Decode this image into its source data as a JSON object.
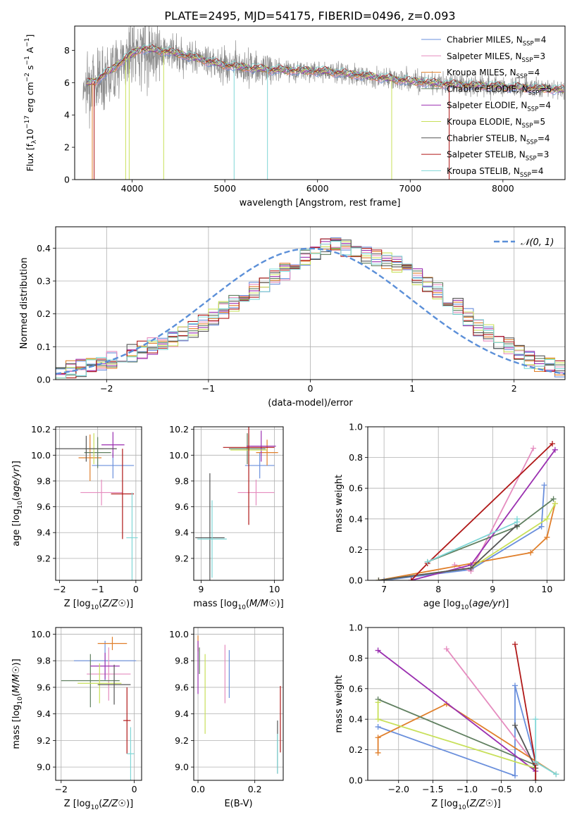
{
  "figure": {
    "title": "PLATE=2495, MJD=54175, FIBERID=0496, z=0.093"
  },
  "colors": {
    "Chabrier MILES": "#6a8fdc",
    "Salpeter MILES": "#e58cbf",
    "Kroupa MILES": "#e07f2b",
    "Chabrier ELODIE": "#5f7f5f",
    "Salpeter ELODIE": "#9a2fb0",
    "Kroupa ELODIE": "#c8e05a",
    "Chabrier STELIB": "#555555",
    "Salpeter STELIB": "#b01818",
    "Kroupa STELIB": "#7fd6d6",
    "data_spectrum": "#8c8c8c",
    "normal": "#5b8fd8"
  },
  "chart_data": [
    {
      "id": "spectrum",
      "type": "line",
      "xlabel": "wavelength [Angstrom, rest frame]",
      "ylabel": "Flux [f_λ10^-17 erg cm^-2 s^-1 A^-1]",
      "xlim": [
        3380,
        8670
      ],
      "ylim": [
        0,
        9.5
      ],
      "xticks": [
        4000,
        5000,
        6000,
        7000,
        8000
      ],
      "yticks": [
        0,
        2,
        4,
        6,
        8
      ],
      "grid": false,
      "legend_position": "top-right",
      "legend": [
        {
          "label": "Chabrier MILES, N",
          "sub": "SSP",
          "suffix": "=4",
          "series": "Chabrier MILES"
        },
        {
          "label": "Salpeter MILES, N",
          "sub": "SSP",
          "suffix": "=3",
          "series": "Salpeter MILES"
        },
        {
          "label": "Kroupa MILES, N",
          "sub": "SSP",
          "suffix": "=4",
          "series": "Kroupa MILES"
        },
        {
          "label": "Chabrier ELODIE, N",
          "sub": "SSP",
          "suffix": "=5",
          "series": "Chabrier ELODIE"
        },
        {
          "label": "Salpeter ELODIE, N",
          "sub": "SSP",
          "suffix": "=4",
          "series": "Salpeter ELODIE"
        },
        {
          "label": "Kroupa ELODIE, N",
          "sub": "SSP",
          "suffix": "=5",
          "series": "Kroupa ELODIE"
        },
        {
          "label": "Chabrier STELIB, N",
          "sub": "SSP",
          "suffix": "=4",
          "series": "Chabrier STELIB"
        },
        {
          "label": "Salpeter STELIB, N",
          "sub": "SSP",
          "suffix": "=3",
          "series": "Salpeter STELIB"
        },
        {
          "label": "Kroupa STELIB, N",
          "sub": "SSP",
          "suffix": "=4",
          "series": "Kroupa STELIB"
        }
      ],
      "continuum": {
        "x": [
          3480,
          3600,
          3800,
          3950,
          4100,
          4300,
          4500,
          4700,
          4900,
          5100,
          5300,
          5500,
          5800,
          6100,
          6400,
          6700,
          7000,
          7400,
          7800,
          8200,
          8650
        ],
        "y": [
          5.9,
          6.1,
          6.9,
          7.6,
          8.1,
          8.0,
          7.8,
          7.5,
          7.2,
          7.0,
          6.9,
          6.8,
          6.75,
          6.7,
          6.5,
          6.3,
          6.1,
          5.9,
          5.8,
          5.7,
          5.55
        ]
      },
      "spectrum_range": [
        3470,
        8660
      ],
      "model_drops": [
        {
          "x": 3570,
          "series": "Kroupa MILES"
        },
        {
          "x": 3590,
          "series": "Salpeter STELIB"
        },
        {
          "x": 3930,
          "series": "Kroupa ELODIE"
        },
        {
          "x": 3968,
          "series": "Kroupa ELODIE"
        },
        {
          "x": 4340,
          "series": "Kroupa ELODIE"
        },
        {
          "x": 5100,
          "series": "Kroupa STELIB"
        },
        {
          "x": 5460,
          "series": "Kroupa STELIB"
        },
        {
          "x": 6800,
          "series": "Kroupa ELODIE"
        },
        {
          "x": 7420,
          "series": "Salpeter STELIB"
        }
      ]
    },
    {
      "id": "residuals",
      "type": "bar",
      "xlabel": "(data-model)/error",
      "ylabel": "Normed distribution",
      "xlim": [
        -2.5,
        2.5
      ],
      "ylim": [
        0,
        0.465
      ],
      "xticks": [
        -2,
        -1,
        0,
        1,
        2
      ],
      "yticks": [
        0.0,
        0.1,
        0.2,
        0.3,
        0.4
      ],
      "grid": true,
      "legend_position": "top-right",
      "normal_label": "𝒩(0, 1)",
      "bin_edges_start": -2.5,
      "bin_width": 0.1,
      "n_bins": 50,
      "base_values": [
        0.02,
        0.03,
        0.035,
        0.045,
        0.05,
        0.06,
        0.07,
        0.08,
        0.09,
        0.1,
        0.11,
        0.12,
        0.14,
        0.155,
        0.17,
        0.19,
        0.21,
        0.23,
        0.25,
        0.27,
        0.29,
        0.31,
        0.33,
        0.35,
        0.37,
        0.39,
        0.405,
        0.41,
        0.4,
        0.39,
        0.38,
        0.37,
        0.36,
        0.35,
        0.33,
        0.31,
        0.29,
        0.27,
        0.25,
        0.22,
        0.19,
        0.16,
        0.14,
        0.12,
        0.1,
        0.08,
        0.06,
        0.05,
        0.04,
        0.035
      ]
    },
    {
      "id": "age-vs-Z",
      "type": "scatter",
      "xlabel": "Z [log10(Z/Z☉)]",
      "ylabel": "age [log10(age/yr)]",
      "xlim": [
        -2.1,
        0.15
      ],
      "ylim": [
        9.03,
        10.22
      ],
      "xticks": [
        -2,
        -1,
        0
      ],
      "yticks": [
        9.2,
        9.4,
        9.6,
        9.8,
        10.0,
        10.2
      ],
      "grid": true,
      "points": [
        {
          "series": "Chabrier MILES",
          "x": -0.6,
          "xerr": 0.55,
          "y": 9.92,
          "yerr": 0.1
        },
        {
          "series": "Salpeter MILES",
          "x": -0.9,
          "xerr": 0.55,
          "y": 9.71,
          "yerr": 0.1
        },
        {
          "series": "Kroupa MILES",
          "x": -1.2,
          "xerr": 0.3,
          "y": 9.98,
          "yerr": 0.18
        },
        {
          "series": "Chabrier ELODIE",
          "x": -1.0,
          "xerr": 0.35,
          "y": 10.02,
          "yerr": 0.12
        },
        {
          "series": "Salpeter ELODIE",
          "x": -0.6,
          "xerr": 0.3,
          "y": 10.08,
          "yerr": 0.1
        },
        {
          "series": "Kroupa ELODIE",
          "x": -1.1,
          "xerr": 0.25,
          "y": 10.05,
          "yerr": 0.12
        },
        {
          "series": "Chabrier STELIB",
          "x": -1.3,
          "xerr": 0.8,
          "y": 10.05,
          "yerr": 0.1
        },
        {
          "series": "Salpeter STELIB",
          "x": -0.35,
          "xerr": 0.3,
          "y": 9.7,
          "yerr": 0.35
        },
        {
          "series": "Kroupa STELIB",
          "x": -0.1,
          "xerr": 0.15,
          "y": 9.36,
          "yerr": 0.35
        }
      ]
    },
    {
      "id": "age-vs-mass",
      "type": "scatter",
      "xlabel": "mass [log10(M/M☉)]",
      "ylabel": "",
      "xlim": [
        8.9,
        10.12
      ],
      "ylim": [
        9.03,
        10.22
      ],
      "xticks": [
        9,
        10
      ],
      "yticks": [
        9.2,
        9.4,
        9.6,
        9.8,
        10.0,
        10.2
      ],
      "grid": true,
      "points": [
        {
          "series": "Chabrier MILES",
          "x": 9.8,
          "xerr": 0.2,
          "y": 9.92,
          "yerr": 0.1
        },
        {
          "series": "Salpeter MILES",
          "x": 9.75,
          "xerr": 0.25,
          "y": 9.71,
          "yerr": 0.1
        },
        {
          "series": "Kroupa MILES",
          "x": 9.9,
          "xerr": 0.15,
          "y": 10.02,
          "yerr": 0.1
        },
        {
          "series": "Chabrier ELODIE",
          "x": 9.63,
          "xerr": 0.25,
          "y": 10.05,
          "yerr": 0.12
        },
        {
          "series": "Salpeter ELODIE",
          "x": 9.82,
          "xerr": 0.2,
          "y": 10.07,
          "yerr": 0.12
        },
        {
          "series": "Kroupa ELODIE",
          "x": 9.65,
          "xerr": 0.25,
          "y": 10.04,
          "yerr": 0.12
        },
        {
          "series": "Chabrier STELIB",
          "x": 9.12,
          "xerr": 0.2,
          "y": 9.36,
          "yerr": 0.5
        },
        {
          "series": "Salpeter STELIB",
          "x": 9.65,
          "xerr": 0.35,
          "y": 10.06,
          "yerr": 0.6
        },
        {
          "series": "Kroupa STELIB",
          "x": 9.15,
          "xerr": 0.2,
          "y": 9.35,
          "yerr": 0.3
        }
      ]
    },
    {
      "id": "weight-vs-age",
      "type": "line",
      "xlabel": "age [log10(age/yr)]",
      "ylabel": "mass weight",
      "xlim": [
        6.7,
        10.32
      ],
      "ylim": [
        0,
        1.0
      ],
      "xticks": [
        7,
        8,
        9,
        10
      ],
      "yticks": [
        0.0,
        0.2,
        0.4,
        0.6,
        0.8,
        1.0
      ],
      "grid": true,
      "series": [
        {
          "name": "Chabrier MILES",
          "x": [
            7.0,
            8.6,
            9.9,
            9.95
          ],
          "y": [
            0.0,
            0.07,
            0.35,
            0.62
          ]
        },
        {
          "name": "Salpeter MILES",
          "x": [
            8.3,
            8.6,
            9.75
          ],
          "y": [
            0.1,
            0.06,
            0.86
          ]
        },
        {
          "name": "Kroupa MILES",
          "x": [
            6.9,
            9.7,
            10.0,
            10.15
          ],
          "y": [
            0.0,
            0.18,
            0.28,
            0.5
          ]
        },
        {
          "name": "Chabrier ELODIE",
          "x": [
            7.8,
            9.45,
            10.12
          ],
          "y": [
            0.12,
            0.35,
            0.53
          ]
        },
        {
          "name": "Salpeter ELODIE",
          "x": [
            7.5,
            8.6,
            10.15
          ],
          "y": [
            0.0,
            0.1,
            0.85
          ]
        },
        {
          "name": "Kroupa ELODIE",
          "x": [
            6.9,
            8.6,
            10.0,
            10.15
          ],
          "y": [
            0.0,
            0.08,
            0.4,
            0.5
          ]
        },
        {
          "name": "Chabrier STELIB",
          "x": [
            6.9,
            8.6,
            9.45
          ],
          "y": [
            0.0,
            0.08,
            0.36
          ]
        },
        {
          "name": "Salpeter STELIB",
          "x": [
            7.5,
            7.8,
            10.1
          ],
          "y": [
            0.0,
            0.11,
            0.89
          ]
        },
        {
          "name": "Kroupa STELIB",
          "x": [
            7.8,
            9.45,
            9.45
          ],
          "y": [
            0.12,
            0.38,
            0.4
          ]
        }
      ]
    },
    {
      "id": "mass-vs-Z",
      "type": "scatter",
      "xlabel": "Z [log10(Z/Z☉)]",
      "ylabel": "mass [log10(M/M☉)]",
      "xlim": [
        -2.15,
        0.2
      ],
      "ylim": [
        8.9,
        10.05
      ],
      "xticks": [
        -2,
        0
      ],
      "yticks": [
        9.0,
        9.2,
        9.4,
        9.6,
        9.8,
        10.0
      ],
      "grid": true,
      "points": [
        {
          "series": "Chabrier MILES",
          "x": -0.8,
          "xerr": 0.85,
          "y": 9.8,
          "yerr": 0.15
        },
        {
          "series": "Salpeter MILES",
          "x": -0.7,
          "xerr": 0.6,
          "y": 9.7,
          "yerr": 0.2
        },
        {
          "series": "Kroupa MILES",
          "x": -0.6,
          "xerr": 0.4,
          "y": 9.93,
          "yerr": 0.05
        },
        {
          "series": "Chabrier ELODIE",
          "x": -1.2,
          "xerr": 0.8,
          "y": 9.65,
          "yerr": 0.2
        },
        {
          "series": "Salpeter ELODIE",
          "x": -0.8,
          "xerr": 0.4,
          "y": 9.76,
          "yerr": 0.1
        },
        {
          "series": "Kroupa ELODIE",
          "x": -0.95,
          "xerr": 0.6,
          "y": 9.63,
          "yerr": 0.15
        },
        {
          "series": "Chabrier STELIB",
          "x": -0.55,
          "xerr": 0.45,
          "y": 9.62,
          "yerr": 0.15
        },
        {
          "series": "Salpeter STELIB",
          "x": -0.2,
          "xerr": 0.1,
          "y": 9.35,
          "yerr": 0.25
        },
        {
          "series": "Kroupa STELIB",
          "x": -0.1,
          "xerr": 0.1,
          "y": 9.1,
          "yerr": 0.2
        }
      ]
    },
    {
      "id": "mass-vs-EBV",
      "type": "scatter",
      "xlabel": "E(B-V)",
      "ylabel": "",
      "xlim": [
        -0.015,
        0.3
      ],
      "ylim": [
        8.9,
        10.05
      ],
      "xticks": [
        0.0,
        0.2
      ],
      "yticks": [
        9.0,
        9.2,
        9.4,
        9.6,
        9.8,
        10.0
      ],
      "grid": true,
      "points": [
        {
          "series": "Chabrier MILES",
          "x": 0.11,
          "xerr": 0,
          "y": 9.7,
          "yerr": 0.18
        },
        {
          "series": "Salpeter MILES",
          "x": 0.095,
          "xerr": 0,
          "y": 9.7,
          "yerr": 0.22
        },
        {
          "series": "Kroupa MILES",
          "x": 0.0,
          "xerr": 0,
          "y": 9.93,
          "yerr": 0.06
        },
        {
          "series": "Chabrier ELODIE",
          "x": 0.005,
          "xerr": 0,
          "y": 9.8,
          "yerr": 0.1
        },
        {
          "series": "Salpeter ELODIE",
          "x": 0.0,
          "xerr": 0,
          "y": 9.75,
          "yerr": 0.2
        },
        {
          "series": "Kroupa ELODIE",
          "x": 0.025,
          "xerr": 0,
          "y": 9.55,
          "yerr": 0.3
        },
        {
          "series": "Chabrier STELIB",
          "x": 0.28,
          "xerr": 0,
          "y": 9.15,
          "yerr": 0.2
        },
        {
          "series": "Salpeter STELIB",
          "x": 0.29,
          "xerr": 0,
          "y": 9.36,
          "yerr": 0.25
        },
        {
          "series": "Kroupa STELIB",
          "x": 0.28,
          "xerr": 0,
          "y": 9.1,
          "yerr": 0.15
        }
      ]
    },
    {
      "id": "weight-vs-Z",
      "type": "line",
      "xlabel": "Z [log10(Z/Z☉)]",
      "ylabel": "mass weight",
      "xlim": [
        -2.45,
        0.42
      ],
      "ylim": [
        0,
        1.0
      ],
      "xticks": [
        -2.0,
        -1.5,
        -1.0,
        -0.5,
        0.0
      ],
      "yticks": [
        0.0,
        0.2,
        0.4,
        0.6,
        0.8,
        1.0
      ],
      "grid": true,
      "series": [
        {
          "name": "Chabrier MILES",
          "x": [
            -2.3,
            -0.3,
            -0.3,
            0.0
          ],
          "y": [
            0.35,
            0.03,
            0.62,
            0.12
          ]
        },
        {
          "name": "Salpeter MILES",
          "x": [
            -1.3,
            0.0
          ],
          "y": [
            0.86,
            0.1
          ]
        },
        {
          "name": "Kroupa MILES",
          "x": [
            -2.3,
            -2.3,
            -1.3,
            0.3
          ],
          "y": [
            0.18,
            0.28,
            0.5,
            0.04
          ]
        },
        {
          "name": "Chabrier ELODIE",
          "x": [
            -2.3,
            0.0
          ],
          "y": [
            0.53,
            0.1
          ]
        },
        {
          "name": "Salpeter ELODIE",
          "x": [
            -2.3,
            0.0
          ],
          "y": [
            0.85,
            0.06
          ]
        },
        {
          "name": "Kroupa ELODIE",
          "x": [
            -2.3,
            -2.3,
            0.0
          ],
          "y": [
            0.51,
            0.4,
            0.08
          ]
        },
        {
          "name": "Chabrier STELIB",
          "x": [
            -0.3,
            0.0,
            0.0
          ],
          "y": [
            0.36,
            0.08,
            0.0
          ]
        },
        {
          "name": "Salpeter STELIB",
          "x": [
            -0.3,
            0.0,
            0.0
          ],
          "y": [
            0.89,
            0.11,
            0.0
          ]
        },
        {
          "name": "Kroupa STELIB",
          "x": [
            0.0,
            0.0,
            0.3
          ],
          "y": [
            0.4,
            0.12,
            0.04
          ]
        }
      ]
    }
  ]
}
